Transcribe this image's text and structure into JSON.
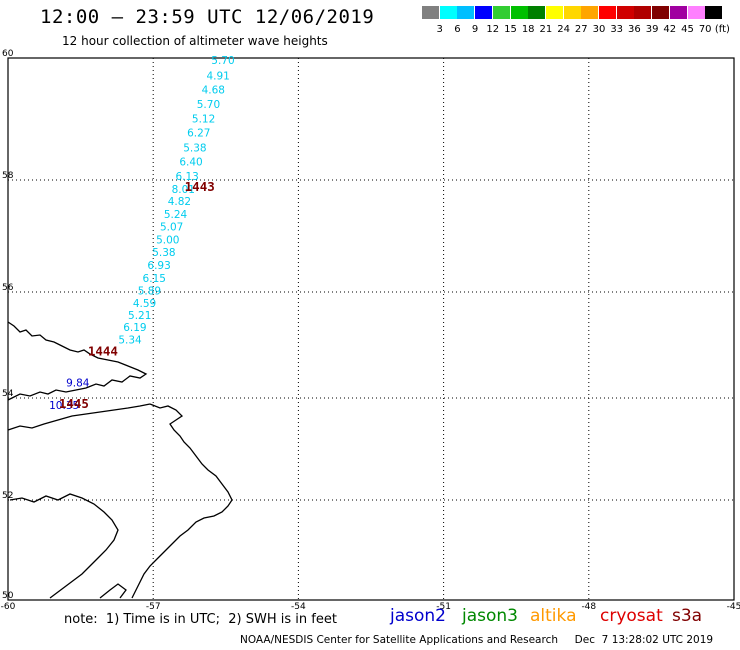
{
  "header": {
    "title": "12:00 – 23:59 UTC 12/06/2019",
    "subtitle": "12 hour collection of altimeter wave heights"
  },
  "colorbar": {
    "unit": "(ft)",
    "colors": [
      "#808080",
      "#00ffff",
      "#00bfff",
      "#0000ff",
      "#32cd32",
      "#00c000",
      "#008000",
      "#ffff00",
      "#ffd700",
      "#ffa500",
      "#ff0000",
      "#d00000",
      "#b00000",
      "#800000",
      "#a000a0",
      "#ff80ff",
      "#000000"
    ],
    "labels": [
      "3",
      "6",
      "9",
      "12",
      "15",
      "18",
      "21",
      "24",
      "27",
      "30",
      "33",
      "36",
      "39",
      "42",
      "45",
      "70"
    ]
  },
  "map": {
    "lat_labels": [
      "60",
      "58",
      "56",
      "54",
      "52",
      "50"
    ],
    "lon_labels": [
      "-60",
      "-57",
      "-54",
      "-51",
      "-48",
      "-45"
    ],
    "lat_values": [
      60,
      58,
      56,
      54,
      52,
      50
    ],
    "lon_values": [
      -60,
      -57,
      -54,
      -51,
      -48,
      -45
    ],
    "track_color": "#00ccee",
    "track_points": [
      {
        "lon": -55.8,
        "lat": 59.9,
        "value": "5.70"
      },
      {
        "lon": -55.9,
        "lat": 59.65,
        "value": "4.91"
      },
      {
        "lon": -56.0,
        "lat": 59.42,
        "value": "4.68"
      },
      {
        "lon": -56.1,
        "lat": 59.18,
        "value": "5.70"
      },
      {
        "lon": -56.2,
        "lat": 58.94,
        "value": "5.12"
      },
      {
        "lon": -56.3,
        "lat": 58.71,
        "value": "6.27"
      },
      {
        "lon": -56.38,
        "lat": 58.47,
        "value": "5.38"
      },
      {
        "lon": -56.46,
        "lat": 58.24,
        "value": "6.40"
      },
      {
        "lon": -56.54,
        "lat": 58.0,
        "value": "6.13"
      },
      {
        "lon": -56.62,
        "lat": 57.77,
        "value": "8.01"
      },
      {
        "lon": -56.7,
        "lat": 57.55,
        "value": "4.82"
      },
      {
        "lon": -56.78,
        "lat": 57.32,
        "value": "5.24"
      },
      {
        "lon": -56.86,
        "lat": 57.1,
        "value": "5.07"
      },
      {
        "lon": -56.94,
        "lat": 56.87,
        "value": "5.00"
      },
      {
        "lon": -57.02,
        "lat": 56.64,
        "value": "5.38"
      },
      {
        "lon": -57.12,
        "lat": 56.41,
        "value": "6.93"
      },
      {
        "lon": -57.22,
        "lat": 56.18,
        "value": "6.15"
      },
      {
        "lon": -57.32,
        "lat": 55.95,
        "value": "5.89"
      },
      {
        "lon": -57.42,
        "lat": 55.72,
        "value": "4.59"
      },
      {
        "lon": -57.52,
        "lat": 55.49,
        "value": "5.21"
      },
      {
        "lon": -57.62,
        "lat": 55.26,
        "value": "6.19"
      },
      {
        "lon": -57.72,
        "lat": 55.03,
        "value": "5.34"
      }
    ],
    "blue_points": [
      {
        "lon": -58.8,
        "lat": 54.22,
        "value": "9.84"
      },
      {
        "lon": -59.15,
        "lat": 53.78,
        "value": "10.35"
      }
    ],
    "blue_color": "#0000cc",
    "time_color": "#800000",
    "time_labels": [
      {
        "lon": -56.35,
        "lat": 57.8,
        "text": "1443"
      },
      {
        "lon": -58.35,
        "lat": 54.8,
        "text": "1444"
      },
      {
        "lon": -58.95,
        "lat": 53.8,
        "text": "1445"
      }
    ]
  },
  "footer": {
    "note": "note:  1) Time is in UTC;  2) SWH is in feet",
    "legend": [
      {
        "text": "jason2",
        "color": "#0000cc"
      },
      {
        "text": "jason3",
        "color": "#008800"
      },
      {
        "text": "altika",
        "color": "#ff9900"
      },
      {
        "text": "cryosat",
        "color": "#dd0000"
      },
      {
        "text": "s3a",
        "color": "#800000"
      }
    ],
    "credit": "NOAA/NESDIS Center for Satellite Applications and Research     Dec  7 13:28:02 UTC 2019"
  }
}
